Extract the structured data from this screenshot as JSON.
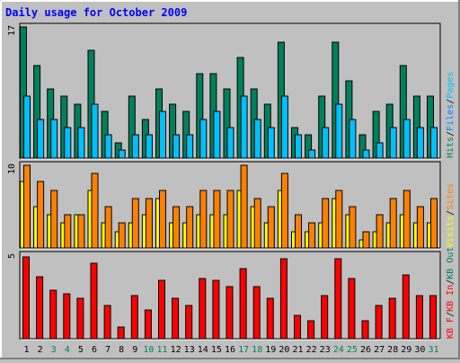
{
  "title": "Daily usage for October 2009",
  "colors": {
    "background": "#c0c0c0",
    "title": "#0000ff",
    "weekday_label": "#000000",
    "weekend_label": "#00805c",
    "hits": "#00805c",
    "files": "#0080ff",
    "pages": "#00c0ff",
    "visits": "#ffff00",
    "sites": "#ff8000",
    "kb_in": "#ff0000",
    "kb_out": "#00805c",
    "kb_f": "#ff0000",
    "separator_light": "#00c0ff",
    "separator_dark": "#0080ff"
  },
  "chart_data": {
    "type": "bar",
    "title": "Daily usage for October 2009",
    "days": [
      "1",
      "2",
      "3",
      "4",
      "5",
      "6",
      "7",
      "8",
      "9",
      "10",
      "11",
      "12",
      "13",
      "14",
      "15",
      "16",
      "17",
      "18",
      "19",
      "20",
      "21",
      "22",
      "23",
      "24",
      "25",
      "26",
      "27",
      "28",
      "29",
      "30",
      "31"
    ],
    "weekend_days": [
      3,
      4,
      10,
      11,
      17,
      18,
      24,
      25,
      31
    ],
    "panels": [
      {
        "name": "hits-files-pages",
        "ymax_label": "17",
        "ylim": [
          0,
          17
        ],
        "legend": [
          {
            "label": "Hits",
            "color_key": "hits"
          },
          {
            "label": "/",
            "color_key": "weekday_label"
          },
          {
            "label": "Files",
            "color_key": "files"
          },
          {
            "label": "/",
            "color_key": "weekday_label"
          },
          {
            "label": "Pages",
            "color_key": "pages"
          }
        ],
        "series": [
          {
            "name": "Hits",
            "color_key": "hits",
            "values": [
              17,
              12,
              9,
              8,
              7,
              14,
              6,
              2,
              8,
              5,
              9,
              7,
              6,
              11,
              11,
              9,
              13,
              9,
              7,
              15,
              4,
              3,
              8,
              15,
              10,
              3,
              6,
              7,
              12,
              8,
              8
            ]
          },
          {
            "name": "Pages",
            "color_key": "pages",
            "values": [
              8,
              5,
              5,
              4,
              4,
              7,
              3,
              1,
              3,
              3,
              6,
              3,
              3,
              5,
              6,
              4,
              8,
              5,
              4,
              8,
              3,
              1,
              4,
              7,
              5,
              1,
              2,
              4,
              5,
              4,
              4
            ]
          }
        ]
      },
      {
        "name": "visits-sites",
        "ymax_label": "10",
        "ylim": [
          0,
          10
        ],
        "legend": [
          {
            "label": "Visits",
            "color_key": "visits"
          },
          {
            "label": "/",
            "color_key": "weekday_label"
          },
          {
            "label": "Sites",
            "color_key": "sites"
          }
        ],
        "series": [
          {
            "name": "Visits",
            "color_key": "visits",
            "values": [
              8,
              5,
              4,
              3,
              4,
              7,
              3,
              2,
              3,
              4,
              6,
              3,
              3,
              4,
              4,
              4,
              7,
              5,
              3,
              7,
              2,
              2,
              3,
              6,
              4,
              1,
              2,
              3,
              4,
              3,
              3
            ]
          },
          {
            "name": "Sites",
            "color_key": "sites",
            "values": [
              10,
              8,
              7,
              4,
              4,
              9,
              5,
              3,
              6,
              6,
              7,
              5,
              5,
              7,
              7,
              7,
              10,
              6,
              5,
              9,
              4,
              3,
              6,
              7,
              5,
              2,
              4,
              6,
              7,
              5,
              6
            ]
          }
        ]
      },
      {
        "name": "kb-in-out-f",
        "ymax_label": "5",
        "ylim": [
          0,
          5
        ],
        "legend": [
          {
            "label": "KB F",
            "color_key": "kb_f"
          },
          {
            "label": "/",
            "color_key": "weekday_label"
          },
          {
            "label": "KB In",
            "color_key": "kb_in"
          },
          {
            "label": "/",
            "color_key": "weekday_label"
          },
          {
            "label": "KB Out",
            "color_key": "kb_out"
          }
        ],
        "series": [
          {
            "name": "KB F",
            "color_key": "kb_f",
            "values": [
              4.9,
              3.7,
              2.9,
              2.7,
              2.4,
              4.5,
              2.0,
              0.7,
              2.6,
              1.7,
              3.5,
              2.4,
              2.0,
              3.6,
              3.5,
              3.1,
              4.2,
              3.1,
              2.4,
              4.8,
              1.4,
              1.1,
              2.6,
              4.8,
              3.6,
              1.1,
              2.0,
              2.4,
              3.8,
              2.6,
              2.6
            ]
          }
        ]
      }
    ]
  }
}
